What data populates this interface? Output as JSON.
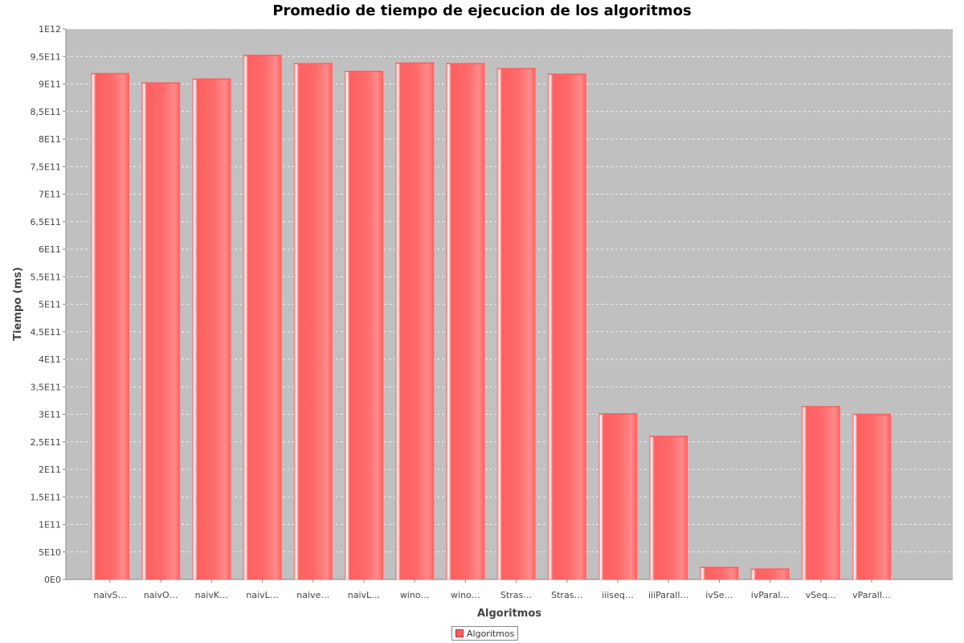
{
  "chart_data": {
    "type": "bar",
    "title": "Promedio de tiempo de ejecucion de los algoritmos",
    "xlabel": "Algoritmos",
    "ylabel": "Tiempo (ms)",
    "ylim": [
      0,
      1000000000000
    ],
    "y_ticks": [
      {
        "value": 0,
        "label": "0E0"
      },
      {
        "value": 50000000000,
        "label": "5E10"
      },
      {
        "value": 100000000000,
        "label": "1E11"
      },
      {
        "value": 150000000000,
        "label": "1,5E11"
      },
      {
        "value": 200000000000,
        "label": "2E11"
      },
      {
        "value": 250000000000,
        "label": "2,5E11"
      },
      {
        "value": 300000000000,
        "label": "3E11"
      },
      {
        "value": 350000000000,
        "label": "3,5E11"
      },
      {
        "value": 400000000000,
        "label": "4E11"
      },
      {
        "value": 450000000000,
        "label": "4,5E11"
      },
      {
        "value": 500000000000,
        "label": "5E11"
      },
      {
        "value": 550000000000,
        "label": "5,5E11"
      },
      {
        "value": 600000000000,
        "label": "6E11"
      },
      {
        "value": 650000000000,
        "label": "6,5E11"
      },
      {
        "value": 700000000000,
        "label": "7E11"
      },
      {
        "value": 750000000000,
        "label": "7,5E11"
      },
      {
        "value": 800000000000,
        "label": "8E11"
      },
      {
        "value": 850000000000,
        "label": "8,5E11"
      },
      {
        "value": 900000000000,
        "label": "9E11"
      },
      {
        "value": 950000000000,
        "label": "9,5E11"
      },
      {
        "value": 1000000000000,
        "label": "1E12"
      }
    ],
    "categories": [
      "naivS…",
      "naivO…",
      "naivK…",
      "naivL…",
      "naive…",
      "naivL…",
      "wino…",
      "wino…",
      "Stras…",
      "Stras…",
      "iiiseq…",
      "iiiParall…",
      "ivSe…",
      "ivParal…",
      "vSeq…",
      "vParall…"
    ],
    "series": [
      {
        "name": "Algoritmos",
        "values": [
          920000000000,
          903000000000,
          910000000000,
          953000000000,
          938000000000,
          924000000000,
          939000000000,
          938000000000,
          929000000000,
          919000000000,
          302000000000,
          261000000000,
          23000000000,
          20000000000,
          315000000000,
          301000000000
        ]
      }
    ],
    "grid": true,
    "legend": "bottom-center",
    "colors": {
      "bar": "#ff5f5f",
      "bar_light": "#ff8a8a",
      "bar_highlight": "#ffffff",
      "plot_background": "#c0c0c0",
      "gridline": "#ffffff"
    }
  }
}
